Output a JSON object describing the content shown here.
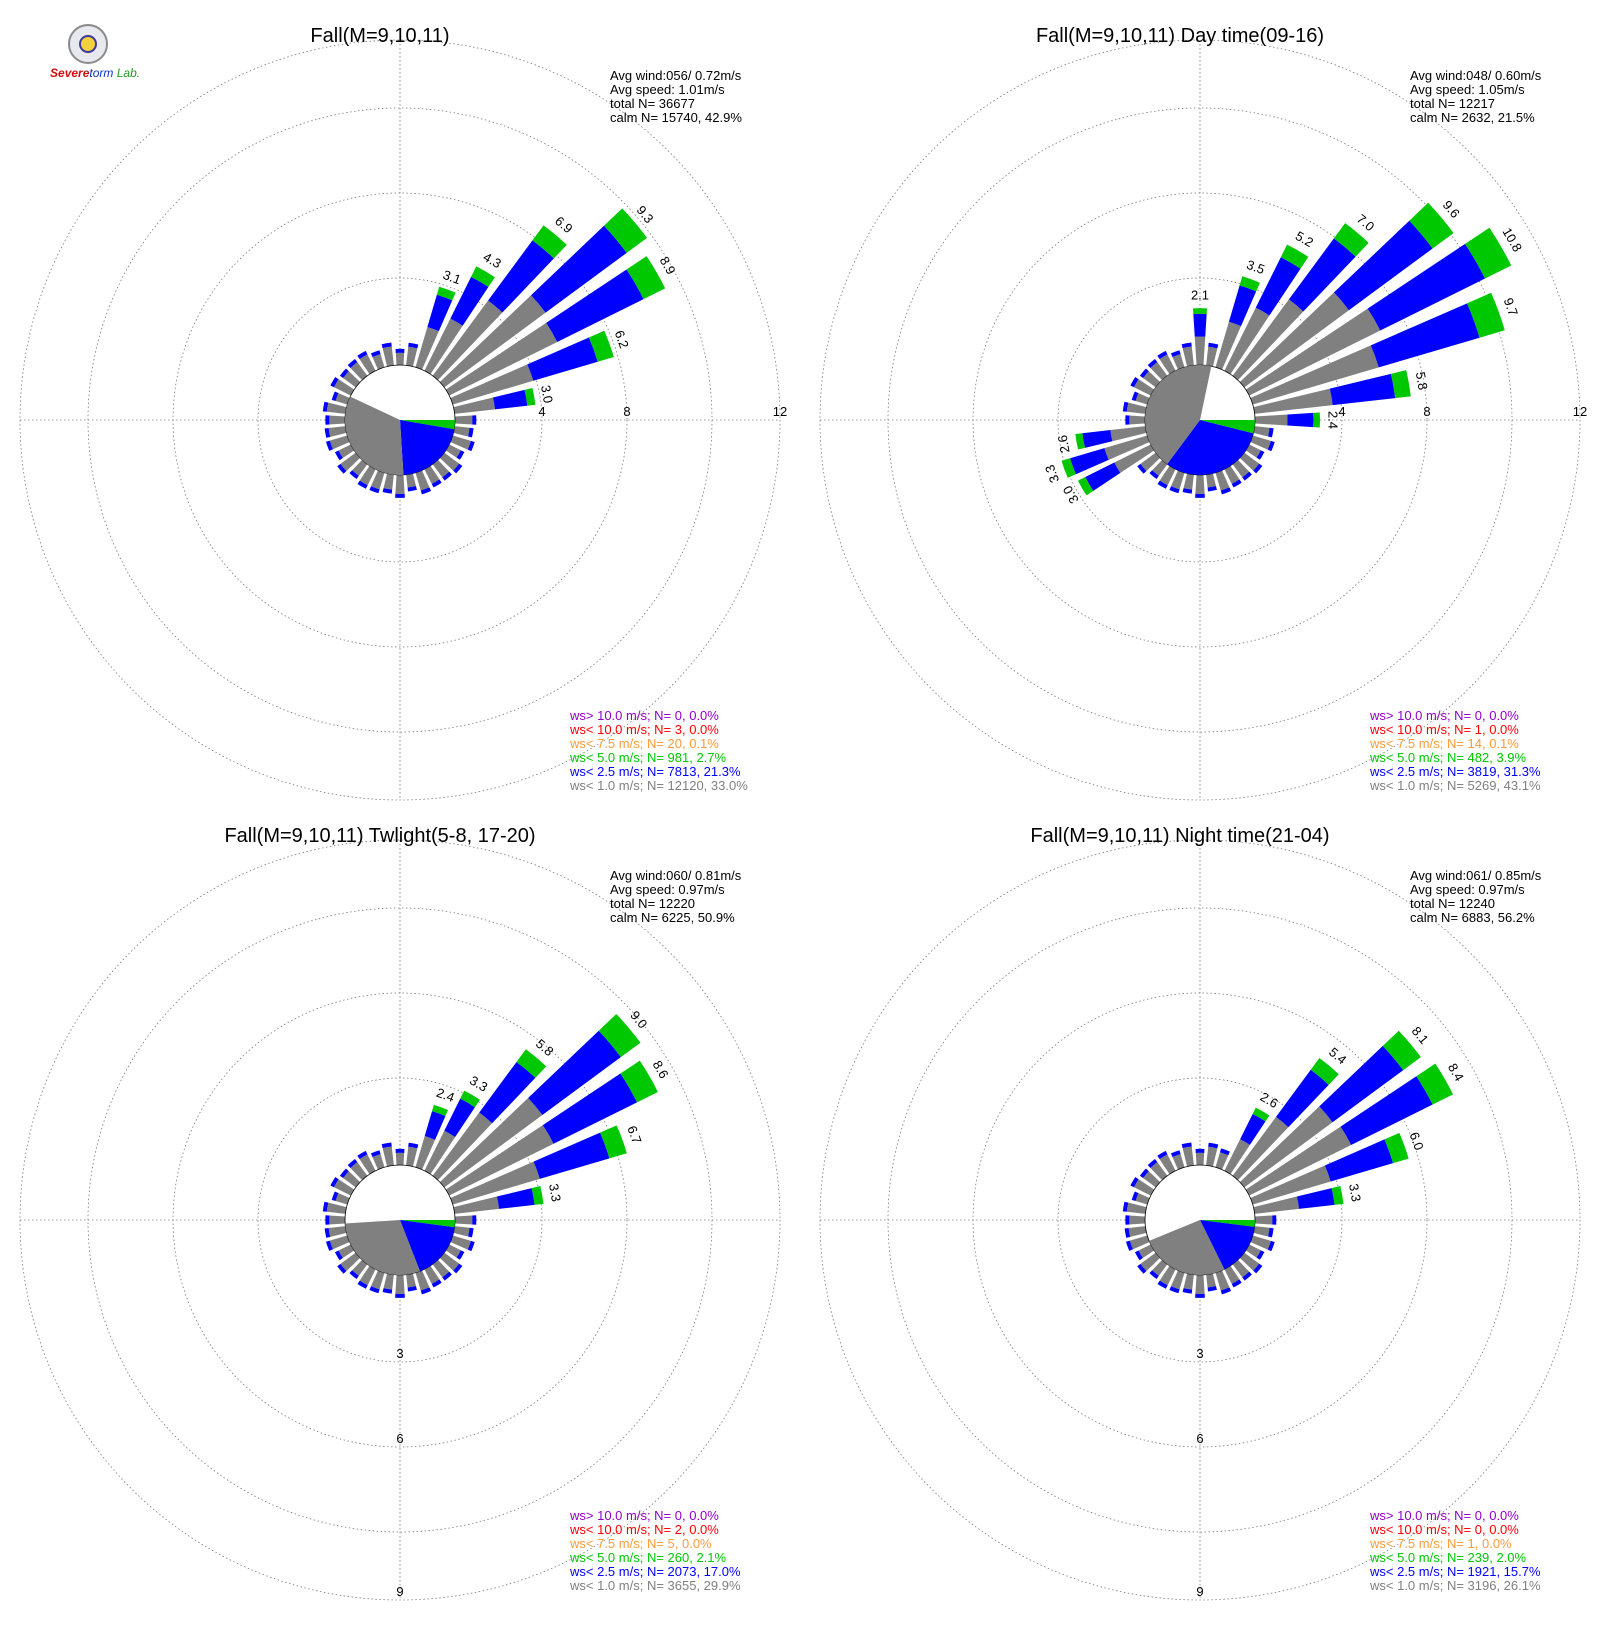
{
  "logo": {
    "text_a": "S",
    "text_b": "evere",
    "text_c": "torm",
    "text_d": "Lab."
  },
  "legend_colors": {
    "ws_gt_10": "#9000c8",
    "ws_lt_10": "#ff0000",
    "ws_lt_7_5": "#ff9a3a",
    "ws_lt_5": "#00c800",
    "ws_lt_2_5": "#0000ff",
    "ws_lt_1": "#808080"
  },
  "chart_data": [
    {
      "type": "wind-rose",
      "title": "Fall(M=9,10,11)",
      "stats": [
        "Avg wind:056/ 0.72m/s",
        "Avg speed: 1.01m/s",
        "total N=       36677",
        "calm N=  15740,  42.9%"
      ],
      "ring_labels": [
        "4",
        "8",
        "12"
      ],
      "ring_values": [
        4,
        8,
        12
      ],
      "labeled_petals": [
        {
          "dir": 20,
          "value": 3.1
        },
        {
          "dir": 30,
          "value": 4.3
        },
        {
          "dir": 40,
          "value": 6.9
        },
        {
          "dir": 50,
          "value": 9.3
        },
        {
          "dir": 60,
          "value": 8.9
        },
        {
          "dir": 70,
          "value": 6.2
        },
        {
          "dir": 80,
          "value": 3.0
        }
      ],
      "calm_pie": [
        {
          "class": "ws<1.0",
          "percent": 33.0
        },
        {
          "class": "ws<2.5",
          "percent": 21.3
        },
        {
          "class": "ws<5.0",
          "percent": 2.7
        }
      ],
      "legend": [
        {
          "label": "ws> 10.0 m/s; N=     0,  0.0%",
          "color": "#9000c8"
        },
        {
          "label": "ws< 10.0 m/s; N=     3,  0.0%",
          "color": "#ff0000"
        },
        {
          "label": "ws<  7.5 m/s; N=    20,  0.1%",
          "color": "#ff9a3a"
        },
        {
          "label": "ws<  5.0 m/s; N=   981,  2.7%",
          "color": "#00c800"
        },
        {
          "label": "ws<  2.5 m/s; N=  7813, 21.3%",
          "color": "#0000ff"
        },
        {
          "label": "ws<  1.0 m/s; N= 12120, 33.0%",
          "color": "#808080"
        }
      ]
    },
    {
      "type": "wind-rose",
      "title": "Fall(M=9,10,11) Day time(09-16)",
      "stats": [
        "Avg wind:048/ 0.60m/s",
        "Avg speed: 1.05m/s",
        "total N=       12217",
        "calm N=   2632,  21.5%"
      ],
      "ring_labels": [
        "4",
        "8",
        "12"
      ],
      "ring_values": [
        4,
        8,
        12
      ],
      "labeled_petals": [
        {
          "dir": 0,
          "value": 2.1
        },
        {
          "dir": 20,
          "value": 3.5
        },
        {
          "dir": 30,
          "value": 5.2
        },
        {
          "dir": 40,
          "value": 7.0
        },
        {
          "dir": 50,
          "value": 9.6
        },
        {
          "dir": 60,
          "value": 10.8
        },
        {
          "dir": 70,
          "value": 9.7
        },
        {
          "dir": 80,
          "value": 5.8
        },
        {
          "dir": 90,
          "value": 2.4
        },
        {
          "dir": 240,
          "value": 3.0
        },
        {
          "dir": 250,
          "value": 3.3
        },
        {
          "dir": 260,
          "value": 2.6
        }
      ],
      "calm_pie": [
        {
          "class": "ws<1.0",
          "percent": 43.1
        },
        {
          "class": "ws<2.5",
          "percent": 31.3
        },
        {
          "class": "ws<5.0",
          "percent": 3.9
        }
      ],
      "legend": [
        {
          "label": "ws> 10.0 m/s; N=     0,  0.0%",
          "color": "#9000c8"
        },
        {
          "label": "ws< 10.0 m/s; N=     1,  0.0%",
          "color": "#ff0000"
        },
        {
          "label": "ws<  7.5 m/s; N=    14,  0.1%",
          "color": "#ff9a3a"
        },
        {
          "label": "ws<  5.0 m/s; N=   482,  3.9%",
          "color": "#00c800"
        },
        {
          "label": "ws<  2.5 m/s; N=  3819, 31.3%",
          "color": "#0000ff"
        },
        {
          "label": "ws<  1.0 m/s; N=  5269, 43.1%",
          "color": "#808080"
        }
      ]
    },
    {
      "type": "wind-rose",
      "title": "Fall(M=9,10,11) Twlight(5-8, 17-20)",
      "stats": [
        "Avg wind:060/ 0.81m/s",
        "Avg speed: 0.97m/s",
        "total N=       12220",
        "calm N=   6225,  50.9%"
      ],
      "ring_labels": [
        "3",
        "6",
        "9"
      ],
      "ring_values": [
        3,
        6,
        9
      ],
      "labeled_petals": [
        {
          "dir": 20,
          "value": 2.4
        },
        {
          "dir": 30,
          "value": 3.3
        },
        {
          "dir": 40,
          "value": 5.8
        },
        {
          "dir": 50,
          "value": 9.0
        },
        {
          "dir": 60,
          "value": 8.6
        },
        {
          "dir": 70,
          "value": 6.7
        },
        {
          "dir": 80,
          "value": 3.3
        }
      ],
      "calm_pie": [
        {
          "class": "ws<1.0",
          "percent": 29.9
        },
        {
          "class": "ws<2.5",
          "percent": 17.0
        },
        {
          "class": "ws<5.0",
          "percent": 2.1
        }
      ],
      "legend": [
        {
          "label": "ws> 10.0 m/s; N=     0,  0.0%",
          "color": "#9000c8"
        },
        {
          "label": "ws< 10.0 m/s; N=     2,  0.0%",
          "color": "#ff0000"
        },
        {
          "label": "ws<  7.5 m/s; N=     5,  0.0%",
          "color": "#ff9a3a"
        },
        {
          "label": "ws<  5.0 m/s; N=   260,  2.1%",
          "color": "#00c800"
        },
        {
          "label": "ws<  2.5 m/s; N=  2073, 17.0%",
          "color": "#0000ff"
        },
        {
          "label": "ws<  1.0 m/s; N=  3655, 29.9%",
          "color": "#808080"
        }
      ]
    },
    {
      "type": "wind-rose",
      "title": "Fall(M=9,10,11) Night time(21-04)",
      "stats": [
        "Avg wind:061/ 0.85m/s",
        "Avg speed: 0.97m/s",
        "total N=       12240",
        "calm N=   6883,  56.2%"
      ],
      "ring_labels": [
        "3",
        "6",
        "9"
      ],
      "ring_values": [
        3,
        6,
        9
      ],
      "labeled_petals": [
        {
          "dir": 30,
          "value": 2.6
        },
        {
          "dir": 40,
          "value": 5.4
        },
        {
          "dir": 50,
          "value": 8.1
        },
        {
          "dir": 60,
          "value": 8.4
        },
        {
          "dir": 70,
          "value": 6.0
        },
        {
          "dir": 80,
          "value": 3.3
        }
      ],
      "calm_pie": [
        {
          "class": "ws<1.0",
          "percent": 26.1
        },
        {
          "class": "ws<2.5",
          "percent": 15.7
        },
        {
          "class": "ws<5.0",
          "percent": 2.0
        }
      ],
      "legend": [
        {
          "label": "ws> 10.0 m/s; N=     0,  0.0%",
          "color": "#9000c8"
        },
        {
          "label": "ws< 10.0 m/s; N=     0,  0.0%",
          "color": "#ff0000"
        },
        {
          "label": "ws<  7.5 m/s; N=     1,  0.0%",
          "color": "#ff9a3a"
        },
        {
          "label": "ws<  5.0 m/s; N=   239,  2.0%",
          "color": "#00c800"
        },
        {
          "label": "ws<  2.5 m/s; N=  1921, 15.7%",
          "color": "#0000ff"
        },
        {
          "label": "ws<  1.0 m/s; N=  3196, 26.1%",
          "color": "#808080"
        }
      ]
    }
  ]
}
